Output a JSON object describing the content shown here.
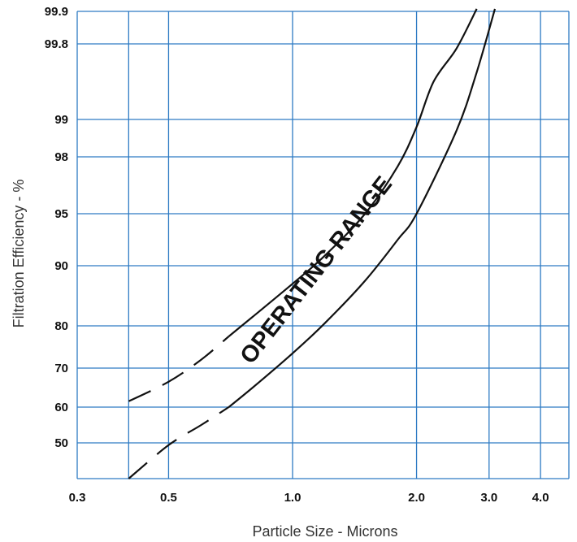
{
  "chart_data": {
    "type": "line",
    "title": "",
    "xlabel": "Particle Size - Microns",
    "ylabel": "Filtration Efficiency - %",
    "x_scale": "log",
    "xlim": [
      0.3,
      4.8
    ],
    "x_ticks": [
      {
        "value": 0.3,
        "label": "0.3"
      },
      {
        "value": 0.5,
        "label": "0.5"
      },
      {
        "value": 1.0,
        "label": "1.0"
      },
      {
        "value": 2.0,
        "label": "2.0"
      },
      {
        "value": 3.0,
        "label": "3.0"
      },
      {
        "value": 4.0,
        "label": "4.0"
      }
    ],
    "x_gridlines": [
      0.4,
      0.5,
      1.0,
      2.0,
      3.0,
      4.0
    ],
    "y_scale": "probability",
    "y_ticks": [
      {
        "value": 50,
        "label": "50"
      },
      {
        "value": 60,
        "label": "60"
      },
      {
        "value": 70,
        "label": "70"
      },
      {
        "value": 80,
        "label": "80"
      },
      {
        "value": 90,
        "label": "90"
      },
      {
        "value": 95,
        "label": "95"
      },
      {
        "value": 98,
        "label": "98"
      },
      {
        "value": 99,
        "label": "99"
      },
      {
        "value": 99.8,
        "label": "99.8"
      },
      {
        "value": 99.9,
        "label": "99.9"
      }
    ],
    "grid": true,
    "grid_color": "#2e7bc4",
    "line_color": "#111111",
    "series": [
      {
        "points": [
          [
            0.4,
            61.5
          ],
          [
            0.5,
            66.5
          ],
          [
            0.6,
            72
          ],
          [
            0.7,
            77.5
          ],
          [
            0.8,
            81.5
          ],
          [
            1.0,
            87
          ],
          [
            1.2,
            91
          ],
          [
            1.5,
            95
          ],
          [
            1.8,
            97.5
          ],
          [
            2.0,
            98.8
          ],
          [
            2.2,
            99.4
          ],
          [
            2.5,
            99.75
          ],
          [
            2.8,
            99.92
          ]
        ],
        "dashed_until": 0.7
      },
      {
        "points": [
          [
            0.4,
            42
          ],
          [
            0.5,
            49.5
          ],
          [
            0.6,
            55
          ],
          [
            0.7,
            60
          ],
          [
            0.8,
            65
          ],
          [
            1.0,
            73.5
          ],
          [
            1.2,
            80.5
          ],
          [
            1.5,
            87.5
          ],
          [
            1.8,
            92.5
          ],
          [
            2.0,
            95
          ],
          [
            2.5,
            98.7
          ],
          [
            2.8,
            99.5
          ],
          [
            3.1,
            99.92
          ]
        ],
        "dashed_until": 0.72
      }
    ],
    "annotations": [
      {
        "text": "OPERATING RANGE",
        "x": 1.18,
        "y": 88.5,
        "angle": -52
      }
    ]
  }
}
